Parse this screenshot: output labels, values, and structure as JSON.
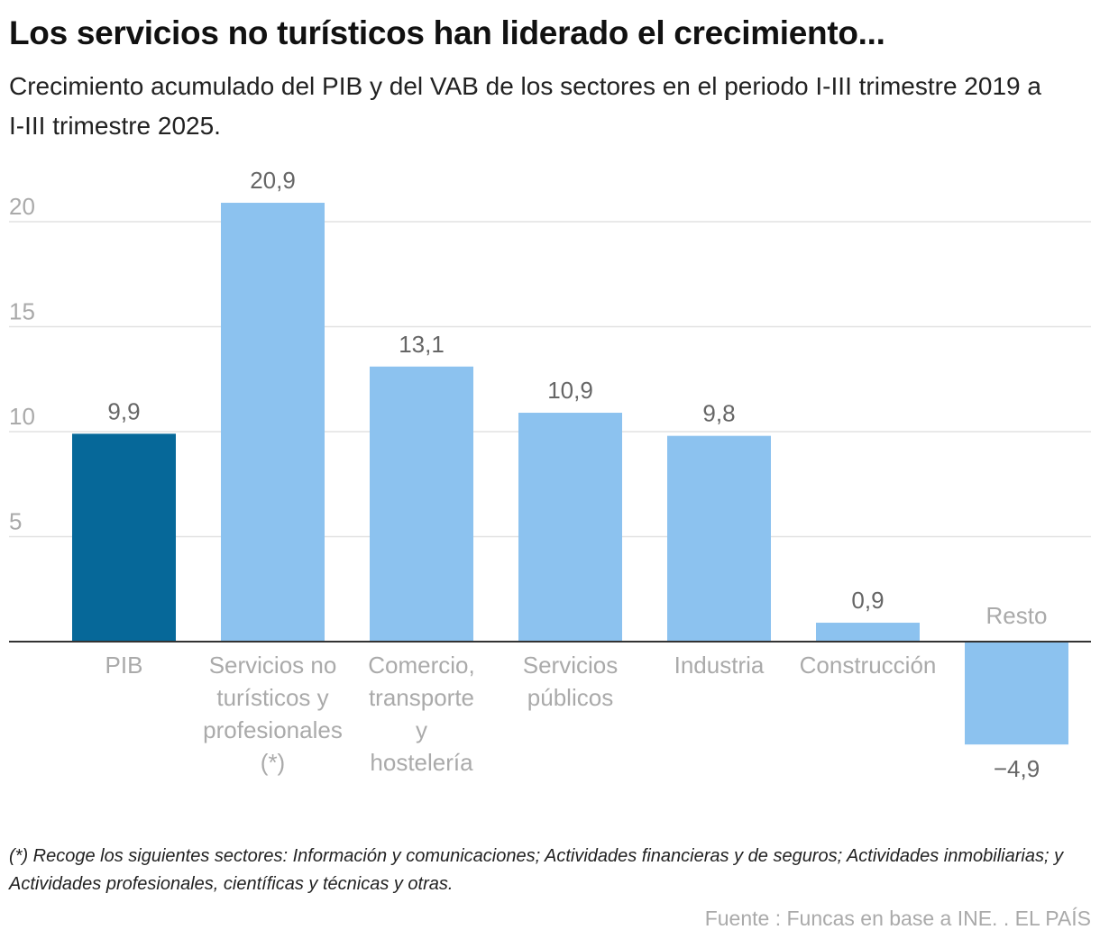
{
  "title": "Los servicios no turísticos han liderado el crecimiento...",
  "subtitle": "Crecimiento acumulado del PIB y del VAB de los sectores en el periodo I-III trimestre 2019 a I-III trimestre 2025.",
  "footnote": "(*) Recoge los siguientes sectores: Información y comunicaciones; Actividades financieras y de seguros; Actividades inmobiliarias; y Actividades profesionales, científicas y técnicas y otras.",
  "source": "Fuente : Funcas en base a INE. . EL PAÍS",
  "colors": {
    "highlight": "#066899",
    "default": "#8cc2ef",
    "grid": "#e2e2e2",
    "axis": "#333333"
  },
  "chart_data": {
    "type": "bar",
    "categories": [
      [
        "PIB"
      ],
      [
        "Servicios no",
        "turísticos y",
        "profesionales",
        "(*)"
      ],
      [
        "Comercio,",
        "transporte",
        "y",
        "hostelería"
      ],
      [
        "Servicios",
        "públicos"
      ],
      [
        "Industria"
      ],
      [
        "Construcción"
      ],
      [
        "Resto"
      ]
    ],
    "values": [
      9.9,
      20.9,
      13.1,
      10.9,
      9.8,
      0.9,
      -4.9
    ],
    "value_labels": [
      "9,9",
      "20,9",
      "13,1",
      "10,9",
      "9,8",
      "0,9",
      "−4,9"
    ],
    "highlight_index": 0,
    "yticks": [
      5,
      10,
      15,
      20
    ],
    "ytick_labels": [
      "5",
      "10",
      "15",
      "20"
    ],
    "ylim": [
      -4.9,
      20.9
    ],
    "grid": true
  }
}
